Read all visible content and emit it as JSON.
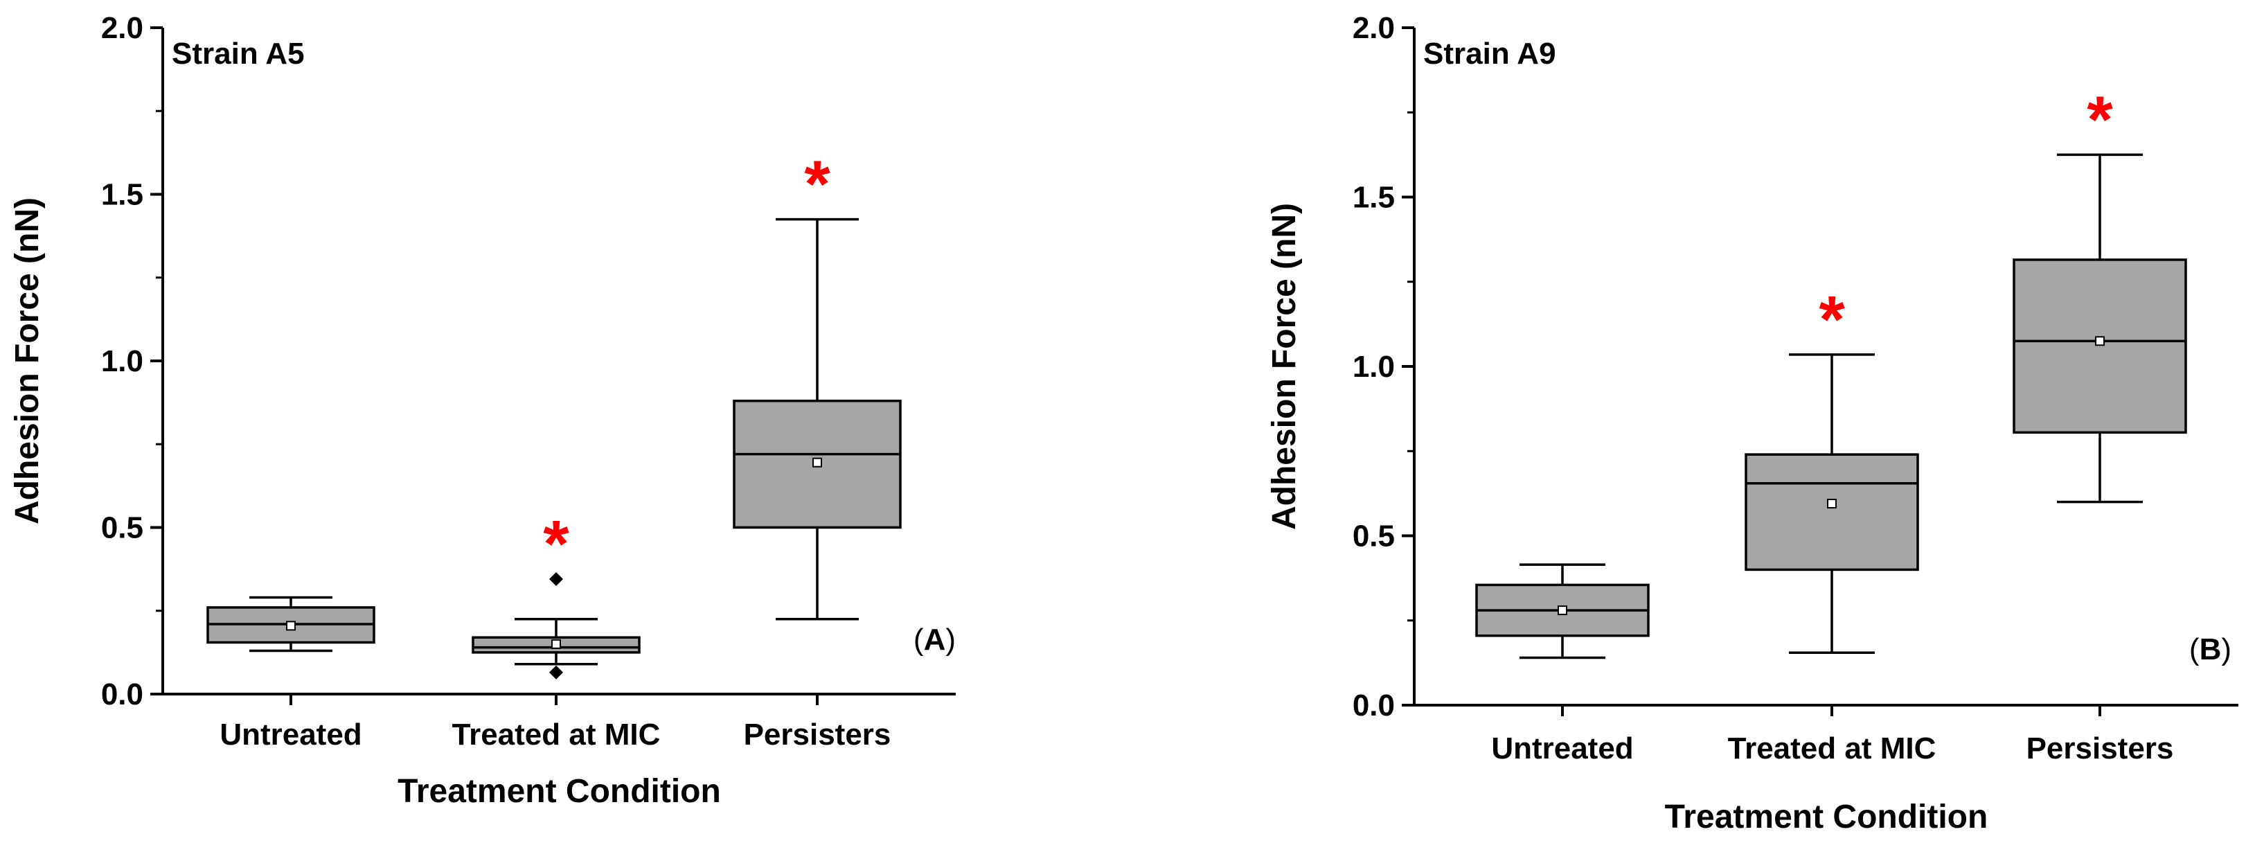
{
  "chart_data": [
    {
      "type": "box",
      "panel_label": "A",
      "annotation": "Strain A5",
      "xlabel": "Treatment Condition",
      "ylabel": "Adhesion Force (nN)",
      "ylim": [
        0.0,
        2.0
      ],
      "yticks": [
        "0.0",
        "0.5",
        "1.0",
        "1.5",
        "2.0"
      ],
      "categories": [
        "Untreated",
        "Treated at MIC",
        "Persisters"
      ],
      "boxes": [
        {
          "min": 0.13,
          "q1": 0.155,
          "median": 0.21,
          "q3": 0.26,
          "max": 0.29,
          "mean": 0.205,
          "outliers": [],
          "significant": false
        },
        {
          "min": 0.09,
          "q1": 0.125,
          "median": 0.14,
          "q3": 0.17,
          "max": 0.225,
          "mean": 0.15,
          "outliers": [
            0.345,
            0.065
          ],
          "significant": true
        },
        {
          "min": 0.225,
          "q1": 0.5,
          "median": 0.72,
          "q3": 0.88,
          "max": 1.425,
          "mean": 0.695,
          "outliers": [],
          "significant": true
        }
      ],
      "significance_mark": "*",
      "box_color": "#a6a6a6"
    },
    {
      "type": "box",
      "panel_label": "B",
      "annotation": "Strain A9",
      "xlabel": "Treatment Condition",
      "ylabel": "Adhesion Force (nN)",
      "ylim": [
        0.0,
        2.0
      ],
      "yticks": [
        "0.0",
        "0.5",
        "1.0",
        "1.5",
        "2.0"
      ],
      "categories": [
        "Untreated",
        "Treated at MIC",
        "Persisters"
      ],
      "boxes": [
        {
          "min": 0.14,
          "q1": 0.205,
          "median": 0.28,
          "q3": 0.355,
          "max": 0.415,
          "mean": 0.28,
          "outliers": [],
          "significant": false
        },
        {
          "min": 0.155,
          "q1": 0.4,
          "median": 0.655,
          "q3": 0.74,
          "max": 1.035,
          "mean": 0.595,
          "outliers": [],
          "significant": true
        },
        {
          "min": 0.6,
          "q1": 0.805,
          "median": 1.075,
          "q3": 1.315,
          "max": 1.625,
          "mean": 1.075,
          "outliers": [],
          "significant": true
        }
      ],
      "significance_mark": "*",
      "box_color": "#a6a6a6"
    }
  ]
}
